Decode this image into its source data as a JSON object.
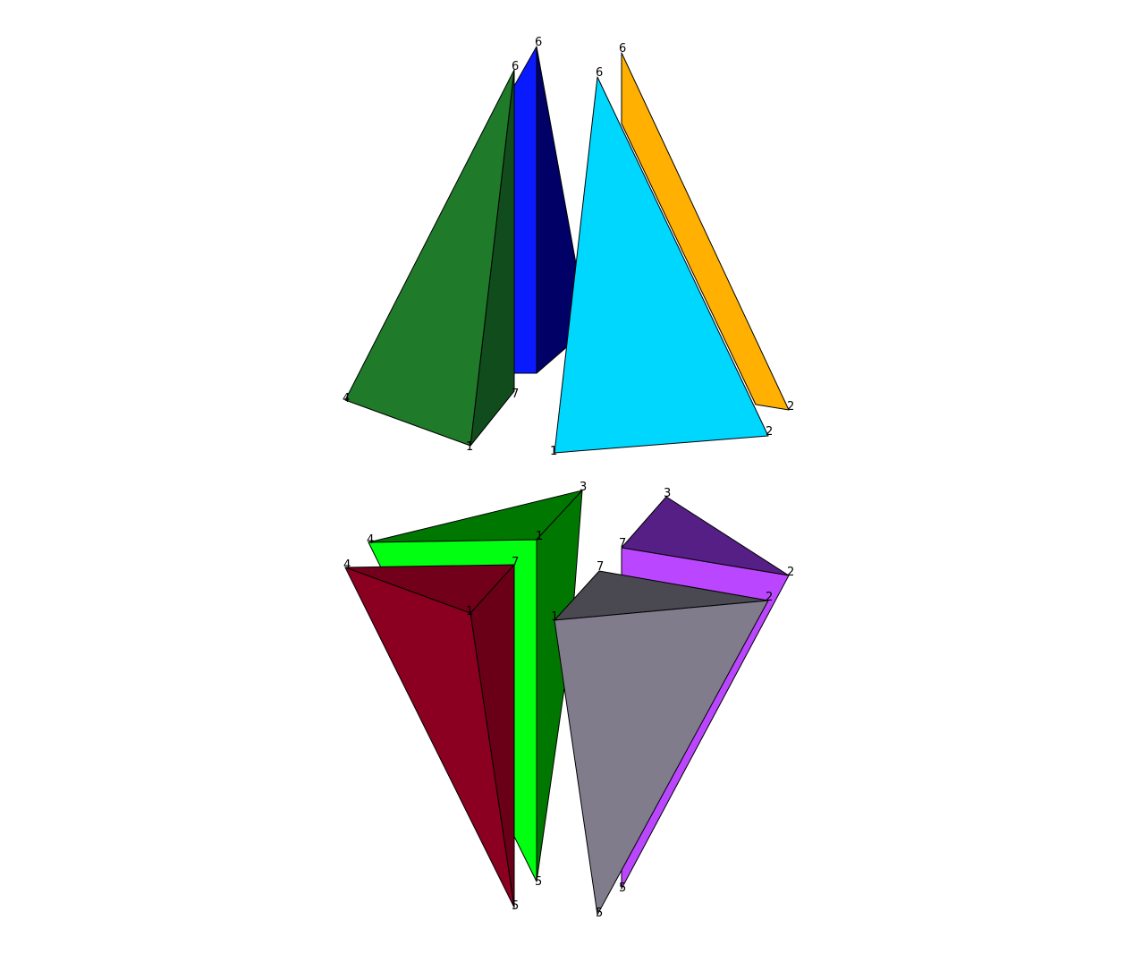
{
  "colors": {
    "pyramid_dark_green_front": "#1f7a29",
    "pyramid_dark_green_side": "#114d1c",
    "pyramid_blue_front": "#0a1aff",
    "pyramid_blue_side": "#000066",
    "triangle_cyan": "#00d7ff",
    "triangle_orange": "#ffb000",
    "wedge_green_top": "#007700",
    "wedge_green_front": "#00ff10",
    "wedge_crimson_top": "#73001b",
    "wedge_crimson_front": "#8b0020",
    "wedge_crimson_side": "#6a0018",
    "wedge_purple_top": "#561f86",
    "wedge_purple_front": "#bb46ff",
    "wedge_gray_top": "#4a4850",
    "wedge_gray_front": "#807c8c"
  },
  "labels": {
    "l_top_green_6": "6",
    "l_top_green_left": "4",
    "l_top_green_1": "1",
    "l_top_green_7": "7",
    "l_top_blue_6": "6",
    "l_top_cyan_6": "6",
    "l_top_cyan_1": "1",
    "l_top_cyan_2": "2",
    "l_top_orange_6": "6",
    "l_top_orange_2": "2",
    "l_bot_green_3": "3",
    "l_bot_green_4": "4",
    "l_bot_green_1": "1",
    "l_bot_green_5": "5",
    "l_bot_crimson_4": "4",
    "l_bot_crimson_7": "7",
    "l_bot_crimson_1": "1",
    "l_bot_crimson_5": "5",
    "l_bot_purple_3": "3",
    "l_bot_purple_7": "7",
    "l_bot_purple_2": "2",
    "l_bot_purple_5": "5",
    "l_bot_gray_7": "7",
    "l_bot_gray_2": "2",
    "l_bot_gray_1": "1",
    "l_bot_gray_5": "5"
  }
}
